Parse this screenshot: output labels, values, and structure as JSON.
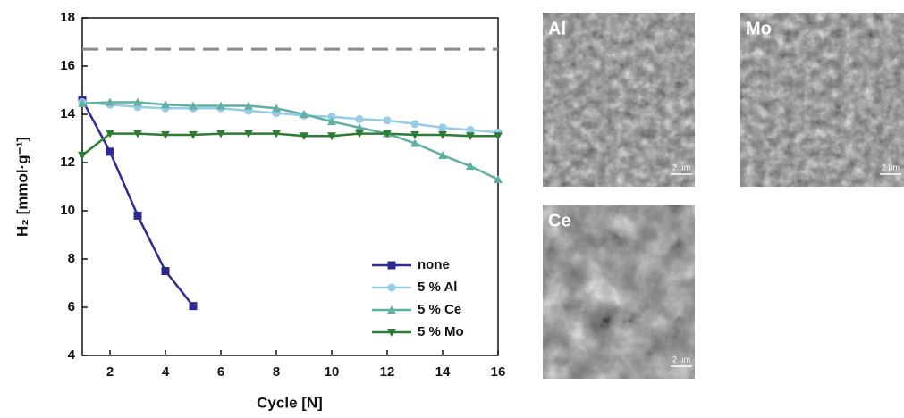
{
  "chart_data": {
    "type": "line",
    "x_label": "Cycle [N]",
    "y_label": "H₂ [mmol·g⁻¹]",
    "x": [
      1,
      2,
      3,
      4,
      5,
      6,
      7,
      8,
      9,
      10,
      11,
      12,
      13,
      14,
      15,
      16
    ],
    "xlim": [
      1,
      16
    ],
    "xticks": [
      2,
      4,
      6,
      8,
      10,
      12,
      14,
      16
    ],
    "ylim": [
      4,
      18
    ],
    "yticks": [
      4,
      6,
      8,
      10,
      12,
      14,
      16,
      18
    ],
    "reference_line": {
      "value": 16.7,
      "color": "#8a8a8a"
    },
    "legend": "lower-right",
    "series": [
      {
        "name": "none",
        "color": "#2e2a8f",
        "marker": "square",
        "values": [
          14.6,
          12.45,
          9.8,
          7.5,
          6.05,
          null,
          null,
          null,
          null,
          null,
          null,
          null,
          null,
          null,
          null,
          null
        ]
      },
      {
        "name": "5 % Al",
        "color": "#96cce8",
        "marker": "circle",
        "values": [
          14.5,
          14.4,
          14.3,
          14.25,
          14.25,
          14.25,
          14.15,
          14.05,
          13.95,
          13.9,
          13.8,
          13.75,
          13.6,
          13.45,
          13.35,
          13.25
        ]
      },
      {
        "name": "5 % Ce",
        "color": "#5fb0a0",
        "marker": "triangle-up",
        "values": [
          14.45,
          14.5,
          14.5,
          14.4,
          14.35,
          14.35,
          14.35,
          14.25,
          14.0,
          13.7,
          13.45,
          13.2,
          12.8,
          12.3,
          11.85,
          11.3
        ]
      },
      {
        "name": "5 % Mo",
        "color": "#2f7a35",
        "marker": "triangle-down",
        "values": [
          12.3,
          13.2,
          13.2,
          13.15,
          13.15,
          13.2,
          13.2,
          13.2,
          13.1,
          13.1,
          13.2,
          13.2,
          13.15,
          13.15,
          13.1,
          13.1
        ]
      }
    ]
  },
  "images": [
    {
      "label": "Al",
      "scale": "2 µm"
    },
    {
      "label": "Mo",
      "scale": "2 µm"
    },
    {
      "label": "Ce",
      "scale": "2 µm"
    }
  ]
}
